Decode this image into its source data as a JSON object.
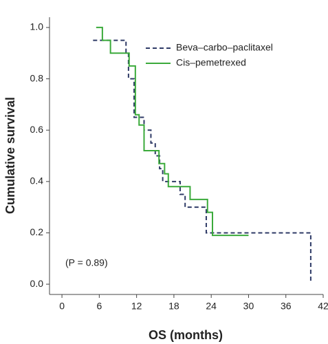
{
  "chart_data": {
    "type": "step",
    "x_label": "OS (months)",
    "y_label": "Cumulative survival",
    "annotation": "(P = 0.89)",
    "xlim": [
      -2,
      42
    ],
    "xticks": [
      0,
      6,
      12,
      18,
      24,
      30,
      36,
      42
    ],
    "ylim": [
      -0.04,
      1.04
    ],
    "yticks": [
      {
        "value": 0,
        "label": "0.0"
      },
      {
        "value": 0.2,
        "label": "0.2"
      },
      {
        "value": 0.4,
        "label": "0.4"
      },
      {
        "value": 0.6,
        "label": "0.6"
      },
      {
        "value": 0.8,
        "label": "0.8"
      },
      {
        "value": 1,
        "label": "1.0"
      }
    ],
    "legend": "upper right",
    "series": [
      {
        "name": "Beva–carbo–paclitaxel",
        "color": "#2e3a66",
        "dash": true,
        "x": [
          5,
          10.3,
          10.7,
          11.6,
          13.2,
          14.3,
          15,
          15.7,
          16.2,
          19,
          19.8,
          23.2,
          40
        ],
        "values": [
          0.95,
          0.9,
          0.8,
          0.65,
          0.6,
          0.55,
          0.5,
          0.45,
          0.4,
          0.35,
          0.3,
          0.2,
          0.01
        ]
      },
      {
        "name": "Cis–pemetrexed",
        "color": "#3aaa3a",
        "dash": false,
        "x": [
          5.5,
          6.5,
          7.8,
          10.8,
          11.8,
          12.4,
          13.2,
          15.6,
          16.5,
          17.1,
          20.6,
          23.4,
          24.2,
          30
        ],
        "values": [
          1,
          0.95,
          0.9,
          0.85,
          0.66,
          0.62,
          0.52,
          0.47,
          0.43,
          0.38,
          0.33,
          0.28,
          0.19,
          0.19
        ]
      }
    ]
  }
}
